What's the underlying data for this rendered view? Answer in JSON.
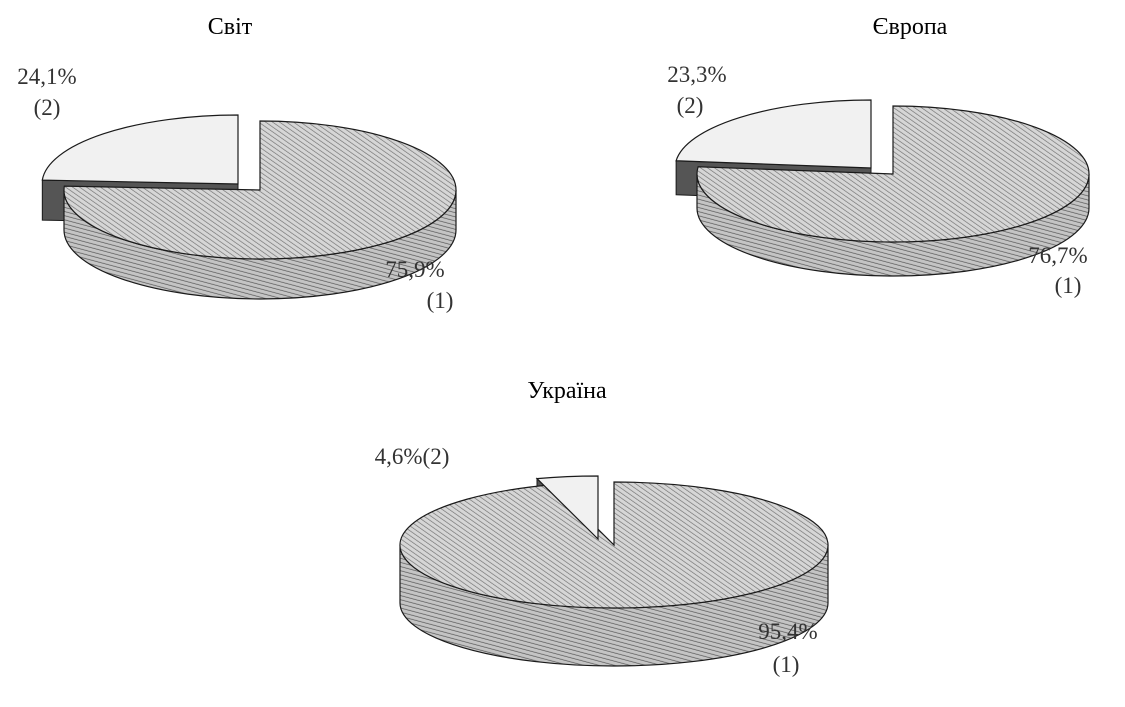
{
  "chart_data": [
    {
      "type": "pie",
      "title": "Світ",
      "slices": [
        {
          "id": "1",
          "value": 75.9,
          "label": "75,9%",
          "sub": "(1)"
        },
        {
          "id": "2",
          "value": 24.1,
          "label": "24,1%",
          "sub": "(2)",
          "exploded": true
        }
      ]
    },
    {
      "type": "pie",
      "title": "Європа",
      "slices": [
        {
          "id": "1",
          "value": 76.7,
          "label": "76,7%",
          "sub": "(1)"
        },
        {
          "id": "2",
          "value": 23.3,
          "label": "23,3%",
          "sub": "(2)",
          "exploded": true
        }
      ]
    },
    {
      "type": "pie",
      "title": "Україна",
      "slices": [
        {
          "id": "1",
          "value": 95.4,
          "label": "95,4%",
          "sub": "(1)"
        },
        {
          "id": "2",
          "value": 4.6,
          "label": "4,6%(2)",
          "sub": "",
          "exploded": true
        }
      ]
    }
  ],
  "colors": {
    "slice_1": "#d6d6d6",
    "slice_1_hatch": "#6f6f6f",
    "slice_2": "#f1f1f1",
    "side_2": "#555555",
    "outline": "#1a1a1a"
  }
}
